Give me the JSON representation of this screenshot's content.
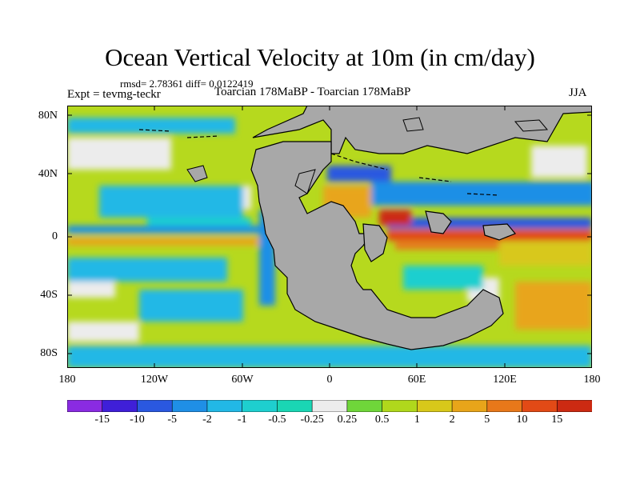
{
  "title": "Ocean Vertical Velocity at 10m (in cm/day)",
  "stats": "rmsd= 2.78361 diff= 0.0122419",
  "experiment": "Expt = tevmg-teckr",
  "period": "Toarcian 178MaBP - Toarcian 178MaBP",
  "season": "JJA",
  "y_axis": [
    "80N",
    "40N",
    "0",
    "40S",
    "80S"
  ],
  "x_axis": [
    "180",
    "120W",
    "60W",
    "0",
    "60E",
    "120E",
    "180"
  ],
  "colorbar": {
    "labels": [
      "-15",
      "-10",
      "-5",
      "-2",
      "-1",
      "-0.5",
      "-0.25",
      "0.25",
      "0.5",
      "1",
      "2",
      "5",
      "10",
      "15"
    ],
    "colors": [
      "#8a2be2",
      "#3f1fd8",
      "#2a58e0",
      "#1f8fe6",
      "#22b8e6",
      "#1ecfcf",
      "#1ad6b4",
      "#ececec",
      "#6fd63a",
      "#b0d81c",
      "#d8c81a",
      "#e8a51a",
      "#e8781a",
      "#e24a16",
      "#cc2a12"
    ]
  },
  "colors": {
    "land": "#a8a8a8",
    "ocean_base": "#b6d91e"
  }
}
